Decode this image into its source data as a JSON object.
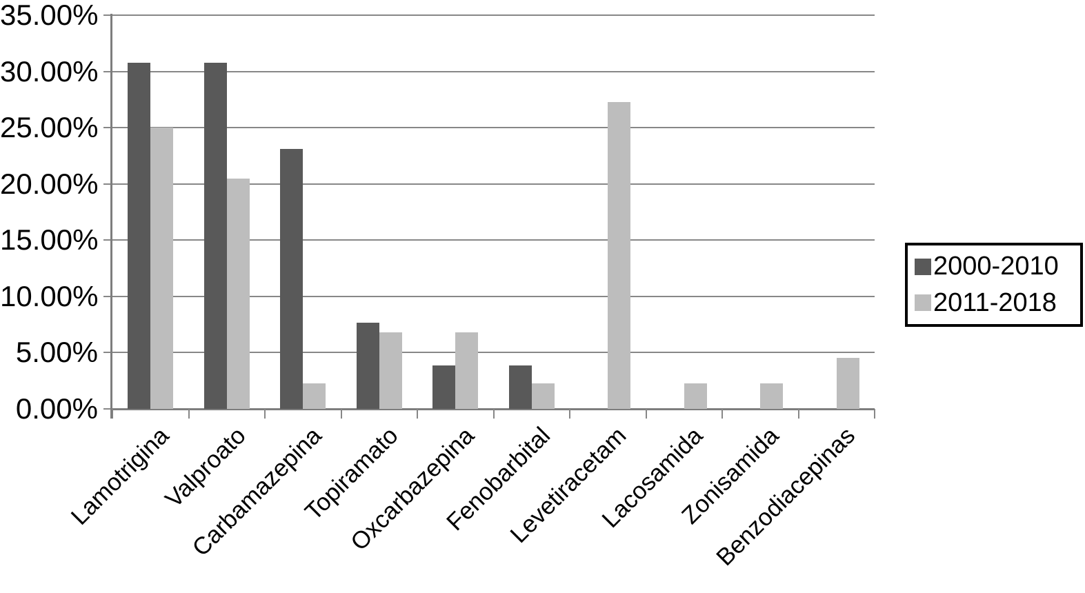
{
  "chart_data": {
    "type": "bar",
    "title": "",
    "xlabel": "",
    "ylabel": "",
    "categories": [
      "Lamotrigina",
      "Valproato",
      "Carbamazepina",
      "Topiramato",
      "Oxcarbazepina",
      "Fenobarbital",
      "Levetiracetam",
      "Lacosamida",
      "Zonisamida",
      "Benzodiacepinas"
    ],
    "series": [
      {
        "name": "2000-2010",
        "color": "#595959",
        "values": [
          30.77,
          30.77,
          23.08,
          7.69,
          3.85,
          3.85,
          0,
          0,
          0,
          0
        ]
      },
      {
        "name": "2011-2018",
        "color": "#bdbdbd",
        "values": [
          25.0,
          20.45,
          2.27,
          6.82,
          6.82,
          2.27,
          27.27,
          2.27,
          2.27,
          4.55
        ]
      }
    ],
    "ylim": [
      0,
      35
    ],
    "ytick_step": 5,
    "ytick_labels": [
      "35.00%",
      "30.00%",
      "25.00%",
      "20.00%",
      "15.00%",
      "10.00%",
      "5.00%",
      "0.00%"
    ],
    "grid": true,
    "legend_position": "right",
    "x_labels_rotation_deg": -45
  },
  "legend": {
    "items": [
      {
        "label": "2000-2010",
        "color": "#595959"
      },
      {
        "label": "2011-2018",
        "color": "#bdbdbd"
      }
    ]
  },
  "colors": {
    "series_2000_2010": "#595959",
    "series_2011_2018": "#bdbdbd",
    "gridline": "#878787",
    "axis": "#7d7d7d",
    "legend_border": "#000000",
    "text": "#000000",
    "background": "#ffffff"
  }
}
